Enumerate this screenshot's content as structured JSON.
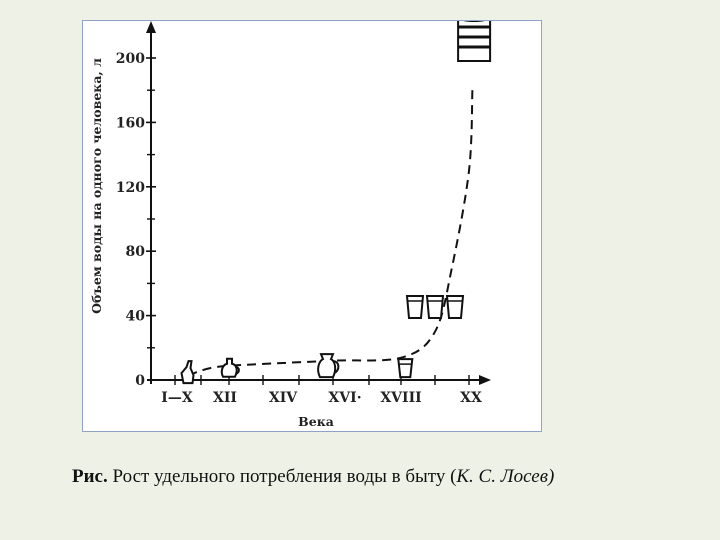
{
  "chart_data": {
    "type": "line",
    "xlabel": "Века",
    "ylabel": "Объем воды на одного человека, л",
    "categories": [
      "I—X",
      "XII",
      "XIV",
      "XVI·",
      "XVIII",
      "XX"
    ],
    "y_ticks": [
      "0",
      "40",
      "80",
      "120",
      "160",
      "200"
    ],
    "ylim": [
      0,
      200
    ],
    "series": [
      {
        "x": [
          0.25,
          0.75,
          1.5,
          2.5,
          3.5,
          4.0,
          4.5,
          5.0,
          5.1
        ],
        "values": [
          3,
          8,
          10,
          12,
          14,
          30,
          70,
          130,
          180
        ],
        "line_style": "dashed"
      }
    ],
    "markers": [
      {
        "icon": "bottle-icon",
        "x": 0.25,
        "y": 3
      },
      {
        "icon": "jug-icon",
        "x": 1.0,
        "y": 7
      },
      {
        "icon": "pitcher-icon",
        "x": 2.4,
        "y": 8
      },
      {
        "icon": "bucket-icon",
        "x": 3.55,
        "y": 8
      },
      {
        "icon": "three-buckets-icon",
        "x": 4.0,
        "y": 41
      },
      {
        "icon": "barrel-icon",
        "x": 5.15,
        "y": 200
      }
    ]
  },
  "caption": {
    "bold": "Рис.",
    "text": " Рост удельного потребления воды в быту (",
    "italic": "К. С. Лосев)"
  }
}
